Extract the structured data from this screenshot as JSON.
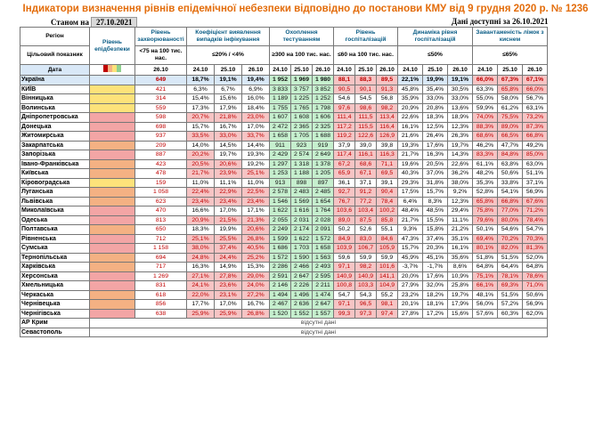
{
  "title": "Індикатори визначення рівнів епідемічної небезпеки відповідно до постанови КМУ від 9 грудня 2020 р. № 1236",
  "as_of_label": "Станом на",
  "as_of_date": "27.10.2021",
  "available_label": "Дані доступні за 26.10.2021",
  "headers": {
    "region": "Регіон",
    "target_label": "Цільовий показник",
    "date_label": "Дата",
    "level": "Рівень епідбезпеки",
    "incidence": "Рівень захворюваності",
    "detection": "Коефіцієнт виявлення випадків інфікування",
    "testing": "Охоплення тестуванням",
    "hospitalization": "Рівень госпіталізацій",
    "dynamics": "Динаміка рівня госпіталізацій",
    "occupancy": "Завантаженість ліжок з киснем",
    "t_incidence": "<75 на 100 тис. нас.",
    "t_detection": "≤20% / <4%",
    "t_testing": "≥300 на 100 тис. нас.",
    "t_hosp": "≤60 на 100 тис. нас.",
    "t_dyn": "≤50%",
    "t_occ": "≤65%",
    "dates_single": "26.10",
    "dates3": [
      "24.10",
      "25.10",
      "26.10"
    ]
  },
  "level_legend_colors": [
    "#c00000",
    "#f4b183",
    "#fde27a",
    "#8fd18f"
  ],
  "rows": [
    {
      "name": "Україна",
      "zone": "",
      "inc": "649",
      "det": [
        "18,7%",
        "19,1%",
        "19,4%"
      ],
      "test": [
        "1 952",
        "1 969",
        "1 980"
      ],
      "hosp": [
        "88,1",
        "88,3",
        "89,5"
      ],
      "dyn": [
        "22,1%",
        "19,9%",
        "19,1%"
      ],
      "occ": [
        "66,0%",
        "67,3%",
        "67,1%"
      ],
      "ukraine": true
    },
    {
      "name": "КИЇВ",
      "zone": "yellow",
      "inc": "421",
      "det": [
        "6,3%",
        "6,7%",
        "6,9%"
      ],
      "test": [
        "3 833",
        "3 757",
        "3 852"
      ],
      "hosp": [
        "90,5",
        "90,1",
        "91,3"
      ],
      "dyn": [
        "45,8%",
        "35,4%",
        "30,5%"
      ],
      "occ": [
        "63,3%",
        "65,8%",
        "66,0%"
      ]
    },
    {
      "name": "Вінницька",
      "zone": "yellow",
      "inc": "314",
      "det": [
        "15,4%",
        "15,6%",
        "16,0%"
      ],
      "test": [
        "1 189",
        "1 225",
        "1 252"
      ],
      "hosp": [
        "54,6",
        "54,5",
        "56,8"
      ],
      "dyn": [
        "35,9%",
        "33,0%",
        "33,0%"
      ],
      "occ": [
        "55,0%",
        "58,0%",
        "56,7%"
      ]
    },
    {
      "name": "Волинська",
      "zone": "yellow",
      "inc": "559",
      "det": [
        "17,3%",
        "17,9%",
        "18,4%"
      ],
      "test": [
        "1 755",
        "1 765",
        "1 798"
      ],
      "hosp": [
        "97,6",
        "98,6",
        "98,2"
      ],
      "dyn": [
        "20,9%",
        "20,8%",
        "13,6%"
      ],
      "occ": [
        "59,9%",
        "61,2%",
        "63,1%"
      ]
    },
    {
      "name": "Дніпропетровська",
      "zone": "red",
      "inc": "598",
      "det": [
        "20,7%",
        "21,8%",
        "23,0%"
      ],
      "test": [
        "1 607",
        "1 608",
        "1 606"
      ],
      "hosp": [
        "111,4",
        "111,5",
        "113,4"
      ],
      "dyn": [
        "22,6%",
        "18,3%",
        "18,9%"
      ],
      "occ": [
        "74,0%",
        "75,5%",
        "73,2%"
      ]
    },
    {
      "name": "Донецька",
      "zone": "red",
      "inc": "698",
      "det": [
        "15,7%",
        "16,7%",
        "17,0%"
      ],
      "test": [
        "2 472",
        "2 365",
        "2 325"
      ],
      "hosp": [
        "117,2",
        "115,5",
        "116,4"
      ],
      "dyn": [
        "16,1%",
        "12,5%",
        "12,3%"
      ],
      "occ": [
        "88,3%",
        "89,0%",
        "87,3%"
      ]
    },
    {
      "name": "Житомирська",
      "zone": "red",
      "inc": "937",
      "det": [
        "33,5%",
        "33,0%",
        "33,7%"
      ],
      "test": [
        "1 658",
        "1 705",
        "1 688"
      ],
      "hosp": [
        "119,2",
        "122,6",
        "126,9"
      ],
      "dyn": [
        "21,6%",
        "26,4%",
        "26,3%"
      ],
      "occ": [
        "68,6%",
        "66,5%",
        "66,8%"
      ]
    },
    {
      "name": "Закарпатська",
      "zone": "orange",
      "inc": "209",
      "det": [
        "14,0%",
        "14,5%",
        "14,4%"
      ],
      "test": [
        "911",
        "923",
        "919"
      ],
      "hosp": [
        "37,9",
        "39,0",
        "39,8"
      ],
      "dyn": [
        "19,3%",
        "17,6%",
        "19,7%"
      ],
      "occ": [
        "46,2%",
        "47,7%",
        "49,2%"
      ]
    },
    {
      "name": "Запорізька",
      "zone": "red",
      "inc": "887",
      "det": [
        "20,2%",
        "19,7%",
        "19,3%"
      ],
      "test": [
        "2 429",
        "2 574",
        "2 649"
      ],
      "hosp": [
        "117,4",
        "116,1",
        "116,3"
      ],
      "dyn": [
        "21,7%",
        "16,3%",
        "14,3%"
      ],
      "occ": [
        "83,3%",
        "84,8%",
        "85,0%"
      ]
    },
    {
      "name": "Івано-Франківська",
      "zone": "orange",
      "inc": "423",
      "det": [
        "20,5%",
        "20,6%",
        "19,2%"
      ],
      "test": [
        "1 297",
        "1 318",
        "1 378"
      ],
      "hosp": [
        "67,2",
        "68,6",
        "71,1"
      ],
      "dyn": [
        "19,6%",
        "20,5%",
        "22,6%"
      ],
      "occ": [
        "61,1%",
        "63,8%",
        "63,0%"
      ]
    },
    {
      "name": "Київська",
      "zone": "orange",
      "inc": "478",
      "det": [
        "21,7%",
        "23,9%",
        "25,1%"
      ],
      "test": [
        "1 253",
        "1 188",
        "1 205"
      ],
      "hosp": [
        "65,9",
        "67,1",
        "69,5"
      ],
      "dyn": [
        "40,3%",
        "37,0%",
        "36,2%"
      ],
      "occ": [
        "48,2%",
        "50,6%",
        "51,1%"
      ]
    },
    {
      "name": "Кіровоградська",
      "zone": "yellow",
      "inc": "159",
      "det": [
        "11,0%",
        "11,1%",
        "11,0%"
      ],
      "test": [
        "913",
        "898",
        "897"
      ],
      "hosp": [
        "36,1",
        "37,1",
        "39,1"
      ],
      "dyn": [
        "29,3%",
        "31,8%",
        "38,0%"
      ],
      "occ": [
        "35,3%",
        "33,8%",
        "37,1%"
      ]
    },
    {
      "name": "Луганська",
      "zone": "orange",
      "inc": "1 058",
      "det": [
        "22,4%",
        "22,9%",
        "22,5%"
      ],
      "test": [
        "2 578",
        "2 483",
        "2 485"
      ],
      "hosp": [
        "92,7",
        "91,2",
        "90,4"
      ],
      "dyn": [
        "17,5%",
        "15,7%",
        "9,2%"
      ],
      "occ": [
        "52,8%",
        "54,1%",
        "56,9%"
      ]
    },
    {
      "name": "Львівська",
      "zone": "orange",
      "inc": "623",
      "det": [
        "23,4%",
        "23,4%",
        "23,4%"
      ],
      "test": [
        "1 546",
        "1 569",
        "1 654"
      ],
      "hosp": [
        "76,7",
        "77,2",
        "78,4"
      ],
      "dyn": [
        "6,4%",
        "8,3%",
        "12,3%"
      ],
      "occ": [
        "65,8%",
        "66,8%",
        "67,6%"
      ]
    },
    {
      "name": "Миколаївська",
      "zone": "red",
      "inc": "470",
      "det": [
        "16,6%",
        "17,0%",
        "17,1%"
      ],
      "test": [
        "1 622",
        "1 616",
        "1 764"
      ],
      "hosp": [
        "103,6",
        "103,4",
        "100,2"
      ],
      "dyn": [
        "48,4%",
        "48,5%",
        "29,4%"
      ],
      "occ": [
        "75,8%",
        "77,0%",
        "71,2%"
      ]
    },
    {
      "name": "Одеська",
      "zone": "red",
      "inc": "813",
      "det": [
        "20,9%",
        "21,5%",
        "21,3%"
      ],
      "test": [
        "2 055",
        "2 031",
        "2 028"
      ],
      "hosp": [
        "89,0",
        "87,5",
        "85,8"
      ],
      "dyn": [
        "21,7%",
        "15,5%",
        "11,1%"
      ],
      "occ": [
        "79,6%",
        "80,0%",
        "78,4%"
      ]
    },
    {
      "name": "Полтавська",
      "zone": "orange",
      "inc": "650",
      "det": [
        "18,3%",
        "19,9%",
        "20,6%"
      ],
      "test": [
        "2 249",
        "2 174",
        "2 091"
      ],
      "hosp": [
        "50,2",
        "52,6",
        "55,1"
      ],
      "dyn": [
        "9,3%",
        "15,8%",
        "21,2%"
      ],
      "occ": [
        "50,1%",
        "54,6%",
        "54,7%"
      ]
    },
    {
      "name": "Рівненська",
      "zone": "red",
      "inc": "712",
      "det": [
        "25,1%",
        "25,5%",
        "26,8%"
      ],
      "test": [
        "1 599",
        "1 622",
        "1 572"
      ],
      "hosp": [
        "84,9",
        "83,0",
        "84,6"
      ],
      "dyn": [
        "47,3%",
        "37,4%",
        "35,1%"
      ],
      "occ": [
        "69,4%",
        "70,2%",
        "70,3%"
      ]
    },
    {
      "name": "Сумська",
      "zone": "red",
      "inc": "1 158",
      "det": [
        "38,0%",
        "37,4%",
        "40,5%"
      ],
      "test": [
        "1 686",
        "1 703",
        "1 658"
      ],
      "hosp": [
        "103,9",
        "106,7",
        "105,9"
      ],
      "dyn": [
        "15,7%",
        "20,3%",
        "16,1%"
      ],
      "occ": [
        "80,1%",
        "82,0%",
        "81,3%"
      ]
    },
    {
      "name": "Тернопільська",
      "zone": "orange",
      "inc": "694",
      "det": [
        "24,8%",
        "24,4%",
        "25,2%"
      ],
      "test": [
        "1 572",
        "1 590",
        "1 563"
      ],
      "hosp": [
        "59,6",
        "59,9",
        "59,9"
      ],
      "dyn": [
        "45,9%",
        "45,1%",
        "35,6%"
      ],
      "occ": [
        "51,8%",
        "51,5%",
        "52,0%"
      ]
    },
    {
      "name": "Харківська",
      "zone": "orange",
      "inc": "717",
      "det": [
        "16,3%",
        "14,9%",
        "15,3%"
      ],
      "test": [
        "2 286",
        "2 466",
        "2 493"
      ],
      "hosp": [
        "97,1",
        "98,2",
        "101,6"
      ],
      "dyn": [
        "-3,7%",
        "-1,7%",
        "8,6%"
      ],
      "occ": [
        "64,8%",
        "64,4%",
        "64,8%"
      ]
    },
    {
      "name": "Херсонська",
      "zone": "red",
      "inc": "1 269",
      "det": [
        "27,1%",
        "27,8%",
        "29,0%"
      ],
      "test": [
        "2 591",
        "2 647",
        "2 595"
      ],
      "hosp": [
        "140,9",
        "140,9",
        "141,1"
      ],
      "dyn": [
        "20,0%",
        "17,6%",
        "10,9%"
      ],
      "occ": [
        "75,1%",
        "78,1%",
        "78,6%"
      ]
    },
    {
      "name": "Хмельницька",
      "zone": "red",
      "inc": "831",
      "det": [
        "24,1%",
        "23,6%",
        "24,0%"
      ],
      "test": [
        "2 146",
        "2 226",
        "2 211"
      ],
      "hosp": [
        "100,8",
        "103,3",
        "104,9"
      ],
      "dyn": [
        "27,9%",
        "32,0%",
        "25,8%"
      ],
      "occ": [
        "66,1%",
        "69,3%",
        "71,0%"
      ]
    },
    {
      "name": "Черкаська",
      "zone": "orange",
      "inc": "618",
      "det": [
        "22,0%",
        "23,1%",
        "27,2%"
      ],
      "test": [
        "1 494",
        "1 496",
        "1 474"
      ],
      "hosp": [
        "54,7",
        "54,3",
        "55,2"
      ],
      "dyn": [
        "23,2%",
        "18,2%",
        "19,7%"
      ],
      "occ": [
        "48,1%",
        "51,5%",
        "50,6%"
      ]
    },
    {
      "name": "Чернівецька",
      "zone": "orange",
      "inc": "856",
      "det": [
        "17,7%",
        "17,0%",
        "16,7%"
      ],
      "test": [
        "2 467",
        "2 636",
        "2 647"
      ],
      "hosp": [
        "97,1",
        "96,5",
        "98,1"
      ],
      "dyn": [
        "20,1%",
        "18,1%",
        "17,9%"
      ],
      "occ": [
        "56,0%",
        "57,2%",
        "56,9%"
      ]
    },
    {
      "name": "Чернігівська",
      "zone": "red",
      "inc": "638",
      "det": [
        "25,9%",
        "25,9%",
        "26,8%"
      ],
      "test": [
        "1 520",
        "1 552",
        "1 557"
      ],
      "hosp": [
        "99,3",
        "97,3",
        "97,4"
      ],
      "dyn": [
        "27,8%",
        "17,2%",
        "15,6%"
      ],
      "occ": [
        "57,6%",
        "60,3%",
        "62,0%"
      ]
    }
  ],
  "no_data_rows": [
    {
      "name": "АР Крим",
      "text": "відсутні дані"
    },
    {
      "name": "Севастополь",
      "text": "відсутні дані"
    }
  ]
}
